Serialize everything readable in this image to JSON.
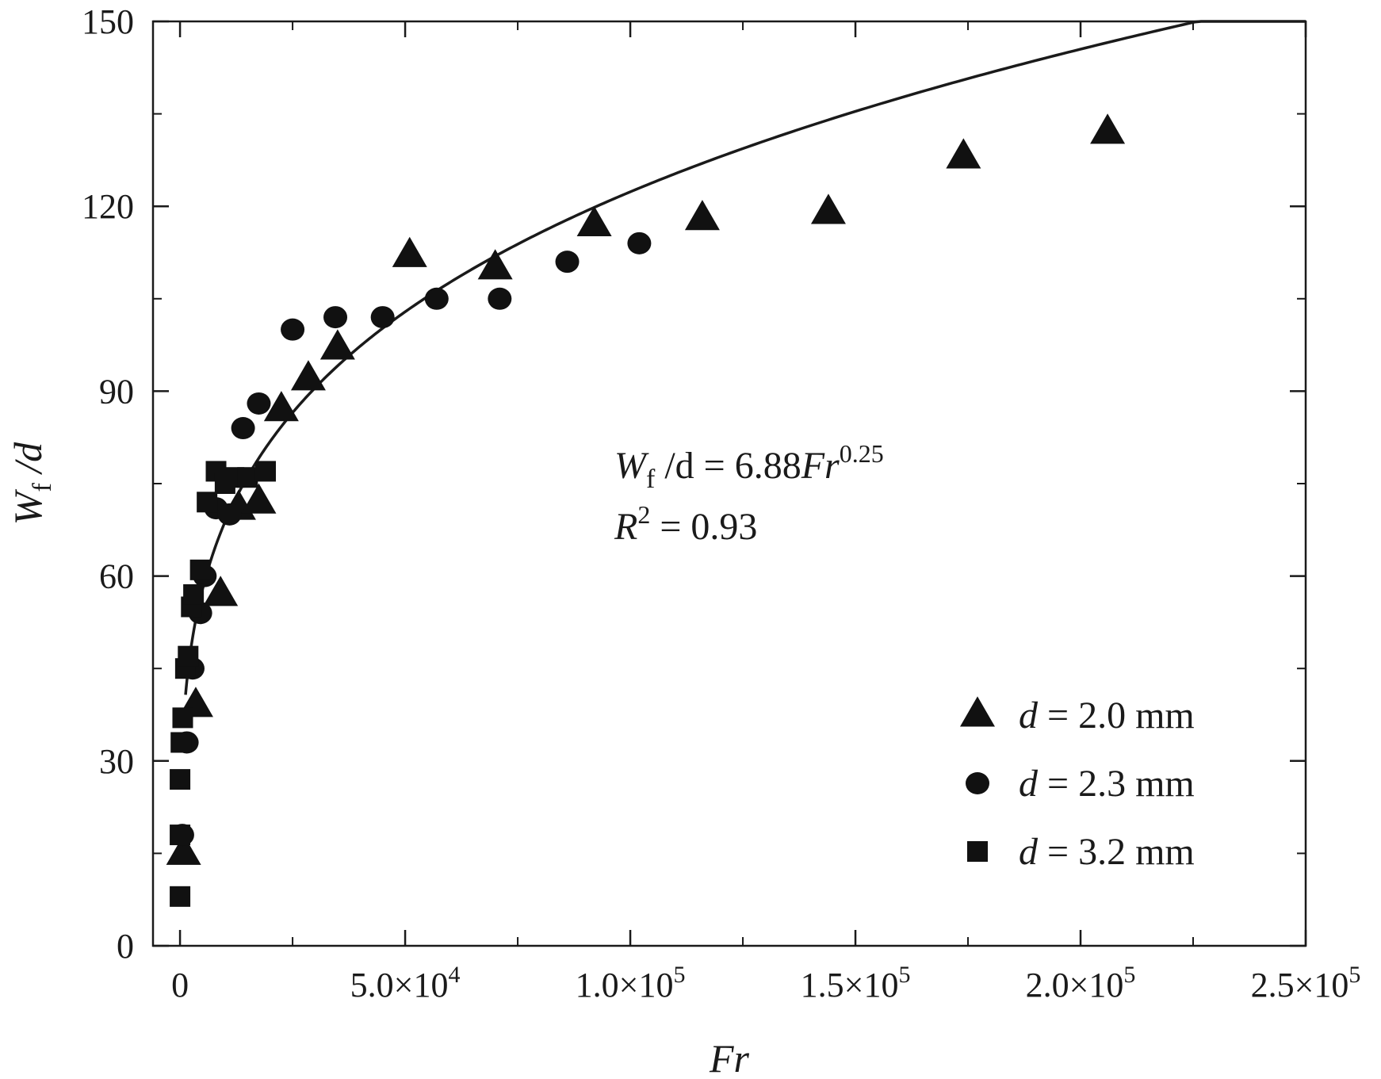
{
  "chart_data": {
    "type": "scatter",
    "xlabel": "Fr",
    "ylabel": {
      "main": "W",
      "sub": "f",
      "rest": " /d"
    },
    "xlim": [
      -6000,
      250000
    ],
    "ylim": [
      0,
      150
    ],
    "grid": false,
    "legend_position": "bottom-right",
    "x_ticks": [
      {
        "value": 0,
        "mantissa": "0",
        "times": "",
        "base": "",
        "exp": ""
      },
      {
        "value": 50000,
        "mantissa": "5.0",
        "times": "×",
        "base": "10",
        "exp": "4"
      },
      {
        "value": 100000,
        "mantissa": "1.0",
        "times": "×",
        "base": "10",
        "exp": "5"
      },
      {
        "value": 150000,
        "mantissa": "1.5",
        "times": "×",
        "base": "10",
        "exp": "5"
      },
      {
        "value": 200000,
        "mantissa": "2.0",
        "times": "×",
        "base": "10",
        "exp": "5"
      },
      {
        "value": 250000,
        "mantissa": "2.5",
        "times": "×",
        "base": "10",
        "exp": "5"
      }
    ],
    "x_minor_ticks": [
      25000,
      75000,
      125000,
      175000,
      225000
    ],
    "y_ticks": [
      0,
      30,
      60,
      90,
      120,
      150
    ],
    "y_minor_ticks": [
      15,
      45,
      75,
      105,
      135
    ],
    "fit": {
      "coef": 6.88,
      "exp": 0.25
    },
    "annotation": {
      "line1": {
        "W": "W",
        "sub": "f",
        "mid": " /d = 6.88",
        "Fr": "Fr",
        "exp": "0.25"
      },
      "line2": {
        "R": "R",
        "sup": "2",
        "rest": " = 0.93"
      }
    },
    "series": [
      {
        "name": "d = 2.0 mm",
        "legend": {
          "d": "d",
          "text": " = 2.0 mm"
        },
        "marker": "triangle",
        "points": [
          [
            800,
            15
          ],
          [
            3500,
            39
          ],
          [
            9000,
            57
          ],
          [
            13000,
            71
          ],
          [
            17500,
            72
          ],
          [
            22500,
            87
          ],
          [
            28500,
            92
          ],
          [
            35000,
            97
          ],
          [
            51000,
            112
          ],
          [
            70000,
            110
          ],
          [
            92000,
            117
          ],
          [
            116000,
            118
          ],
          [
            144000,
            119
          ],
          [
            174000,
            128
          ],
          [
            206000,
            132
          ]
        ]
      },
      {
        "name": "d = 2.3 mm",
        "legend": {
          "d": "d",
          "text": " = 2.3 mm"
        },
        "marker": "circle",
        "points": [
          [
            500,
            18
          ],
          [
            1500,
            33
          ],
          [
            2800,
            45
          ],
          [
            4500,
            54
          ],
          [
            5500,
            60
          ],
          [
            8000,
            71
          ],
          [
            11000,
            70
          ],
          [
            14000,
            84
          ],
          [
            17500,
            88
          ],
          [
            25000,
            100
          ],
          [
            34500,
            102
          ],
          [
            45000,
            102
          ],
          [
            57000,
            105
          ],
          [
            71000,
            105
          ],
          [
            86000,
            111
          ],
          [
            102000,
            114
          ]
        ]
      },
      {
        "name": "d = 3.2 mm",
        "legend": {
          "d": "d",
          "text": " = 3.2 mm"
        },
        "marker": "square",
        "points": [
          [
            0,
            8
          ],
          [
            0,
            18
          ],
          [
            0,
            27
          ],
          [
            200,
            33
          ],
          [
            600,
            37
          ],
          [
            1200,
            45
          ],
          [
            1800,
            47
          ],
          [
            2500,
            55
          ],
          [
            3000,
            57
          ],
          [
            4500,
            61
          ],
          [
            6000,
            72
          ],
          [
            8000,
            77
          ],
          [
            10000,
            75
          ],
          [
            12000,
            76
          ],
          [
            15000,
            76
          ],
          [
            19000,
            77
          ]
        ]
      }
    ]
  }
}
